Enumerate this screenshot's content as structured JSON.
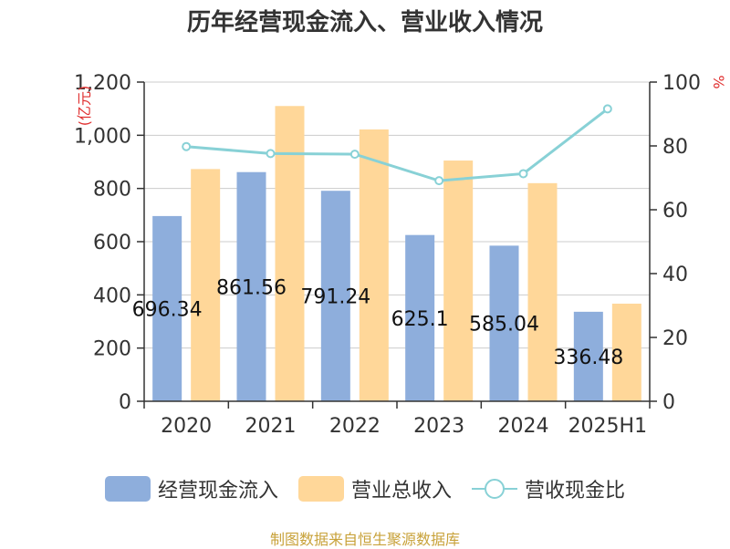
{
  "chart_data": {
    "type": "bar",
    "title": "历年经营现金流入、营业收入情况",
    "categories": [
      "2020",
      "2021",
      "2022",
      "2023",
      "2024",
      "2025H1"
    ],
    "series": [
      {
        "name": "经营现金流入",
        "type": "bar",
        "axis": "left",
        "color": "#8eaedc",
        "values": [
          696.34,
          861.56,
          791.24,
          625.1,
          585.04,
          336.48
        ],
        "labels": [
          "696.34",
          "861.56",
          "791.24",
          "625.1",
          "585.04",
          "336.48"
        ]
      },
      {
        "name": "营业总收入",
        "type": "bar",
        "axis": "left",
        "color": "#ffd799",
        "values": [
          873,
          1110,
          1022,
          905,
          820,
          367
        ]
      },
      {
        "name": "营收现金比",
        "type": "line",
        "axis": "right",
        "color": "#88d1d6",
        "values": [
          79.8,
          77.6,
          77.4,
          69.1,
          71.3,
          91.6
        ]
      }
    ],
    "ylabel_left": "亿元",
    "ylabel_right": "%",
    "ylim_left": [
      0,
      1200
    ],
    "ylim_right": [
      0,
      100
    ],
    "yticks_left": [
      "0",
      "200",
      "400",
      "600",
      "800",
      "1,000",
      "1,200"
    ],
    "yticks_right": [
      "0",
      "20",
      "40",
      "60",
      "80",
      "100"
    ],
    "grid": true,
    "legend_position": "bottom"
  },
  "source": "制图数据来自恒生聚源数据库"
}
